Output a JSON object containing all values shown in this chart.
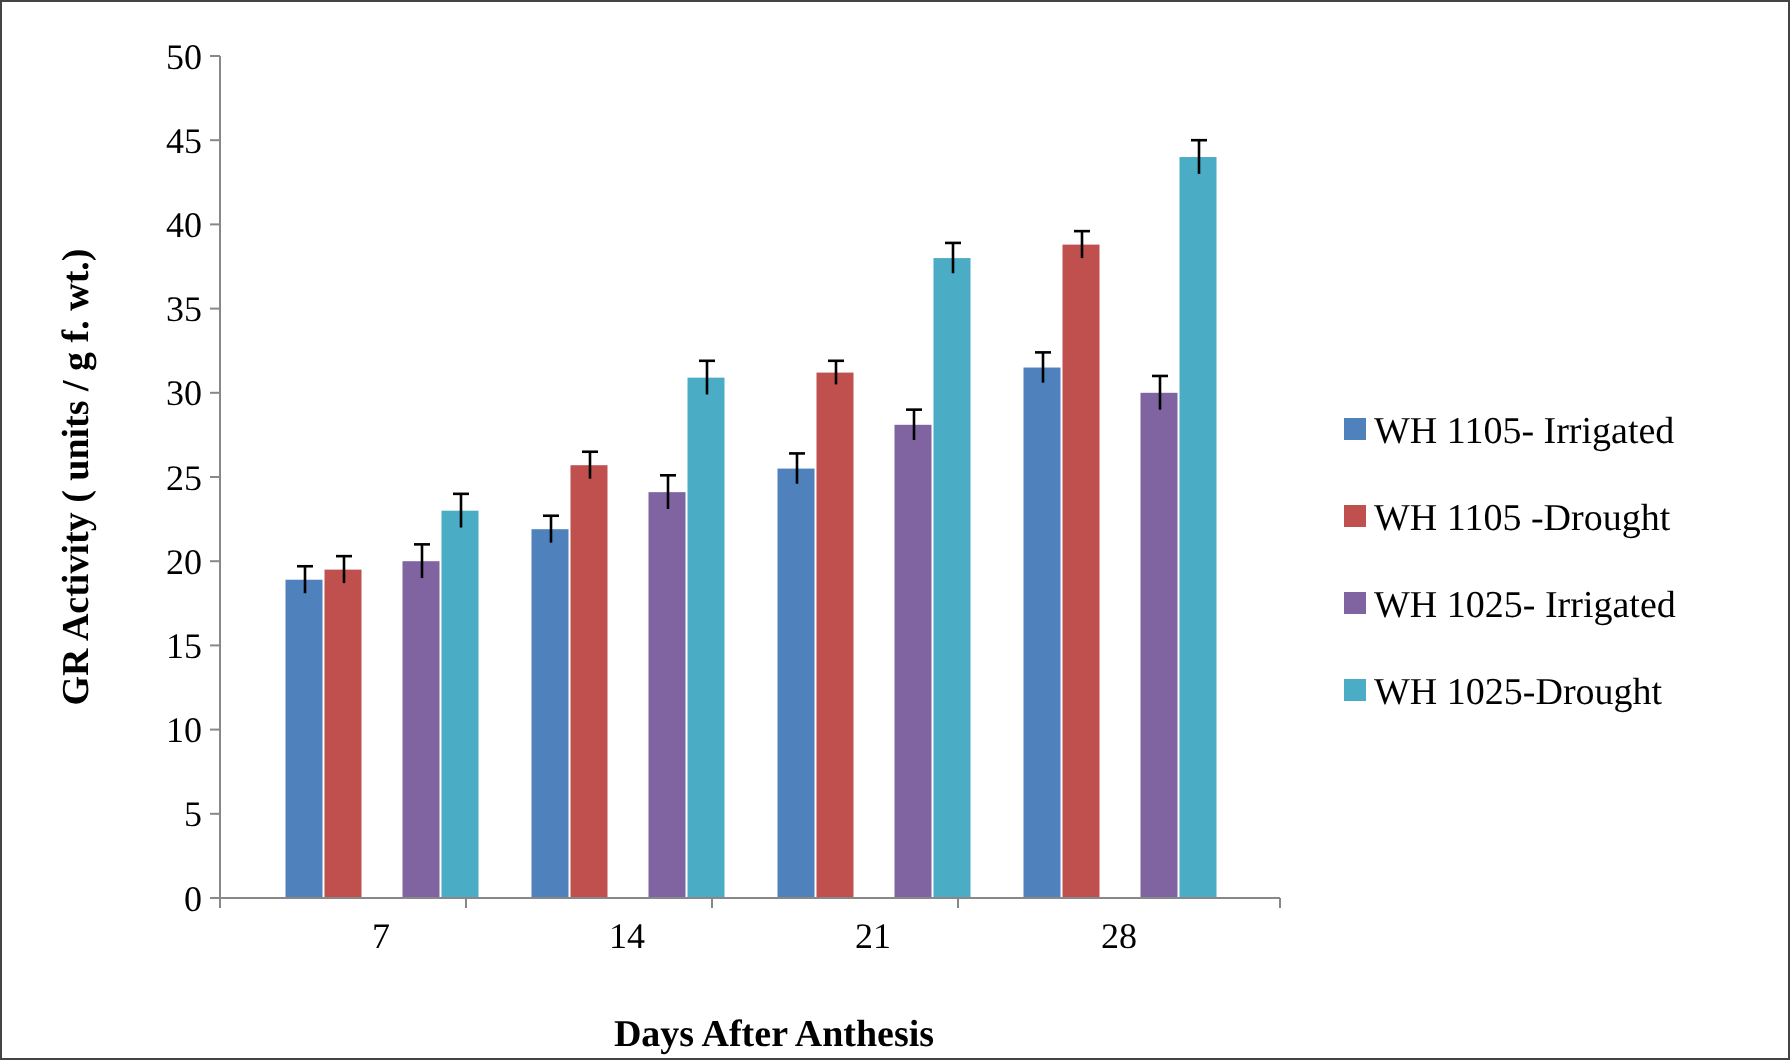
{
  "chart_data": {
    "type": "bar",
    "xlabel": "Days After Anthesis",
    "ylabel": "GR Activity ( units / g  f. wt.)",
    "categories": [
      "7",
      "14",
      "21",
      "28"
    ],
    "ylim": [
      0,
      50
    ],
    "yticks": [
      0,
      5,
      10,
      15,
      20,
      25,
      30,
      35,
      40,
      45,
      50
    ],
    "grid": false,
    "legend": "right",
    "series": [
      {
        "name": "WH 1105- Irrigated",
        "color": "#4f81bd",
        "values": [
          18.9,
          21.9,
          25.5,
          31.5
        ],
        "errors": [
          0.8,
          0.8,
          0.9,
          0.9
        ]
      },
      {
        "name": "WH 1105 -Drought",
        "color": "#c0504d",
        "values": [
          19.5,
          25.7,
          31.2,
          38.8
        ],
        "errors": [
          0.8,
          0.8,
          0.7,
          0.8
        ]
      },
      {
        "name": "WH 1025- Irrigated",
        "color": "#8064a2",
        "values": [
          20,
          24.1,
          28.1,
          30
        ],
        "errors": [
          1,
          1,
          0.9,
          1
        ]
      },
      {
        "name": "WH 1025-Drought",
        "color": "#4bacc6",
        "values": [
          23,
          30.9,
          38,
          44
        ],
        "errors": [
          1,
          1,
          0.9,
          1
        ]
      }
    ]
  }
}
